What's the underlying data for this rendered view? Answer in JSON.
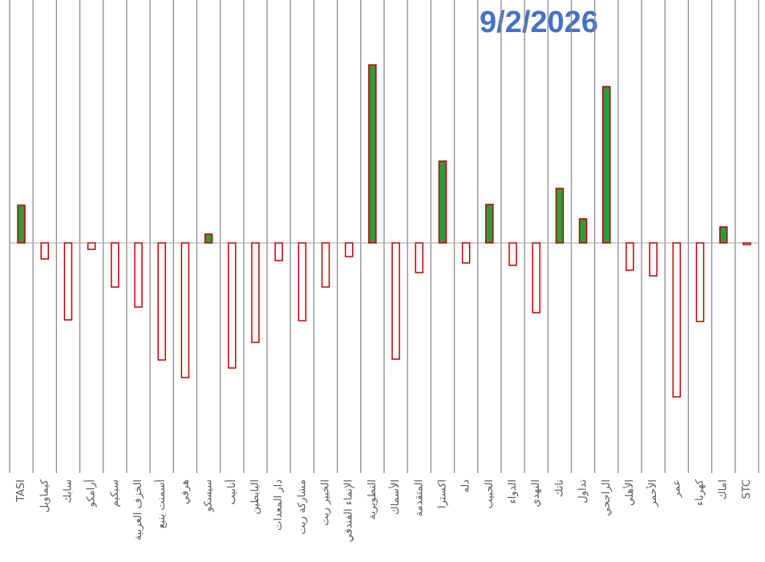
{
  "chart_data": {
    "type": "bar",
    "title": "9/2/2026",
    "categories": [
      "TASI",
      "كيماويل",
      "سابك",
      "أرامكو",
      "سبكيم",
      "الخزف العربية",
      "أسمنت ينبع",
      "هرفي",
      "سيسكو",
      "أنابيب",
      "البابطين",
      "دار المعدات",
      "مشاركة ريت",
      "الخبير ريت",
      "الإنماء الفندقي",
      "التطويرية",
      "الأسماك",
      "المتقدمة",
      "اكسترا",
      "دله",
      "الحبيب",
      "الدواء",
      "النهدي",
      "ناتك",
      "تداول",
      "الراجحي",
      "الأهلي",
      "الأحمر",
      "عمر",
      "كهرباء",
      "اماك",
      "STC"
    ],
    "values": [
      47,
      -20,
      -96,
      -8,
      -55,
      -80,
      -146,
      -168,
      11,
      -156,
      -124,
      -22,
      -97,
      -55,
      -17,
      222,
      -145,
      -37,
      102,
      -25,
      48,
      -28,
      -87,
      68,
      30,
      195,
      -34,
      -41,
      -192,
      -98,
      20,
      -2
    ],
    "ylim": [
      -287,
      288
    ],
    "positive_color": "#2e9a3e",
    "negative_color": "#ffffff",
    "border_color": "#c00000"
  }
}
